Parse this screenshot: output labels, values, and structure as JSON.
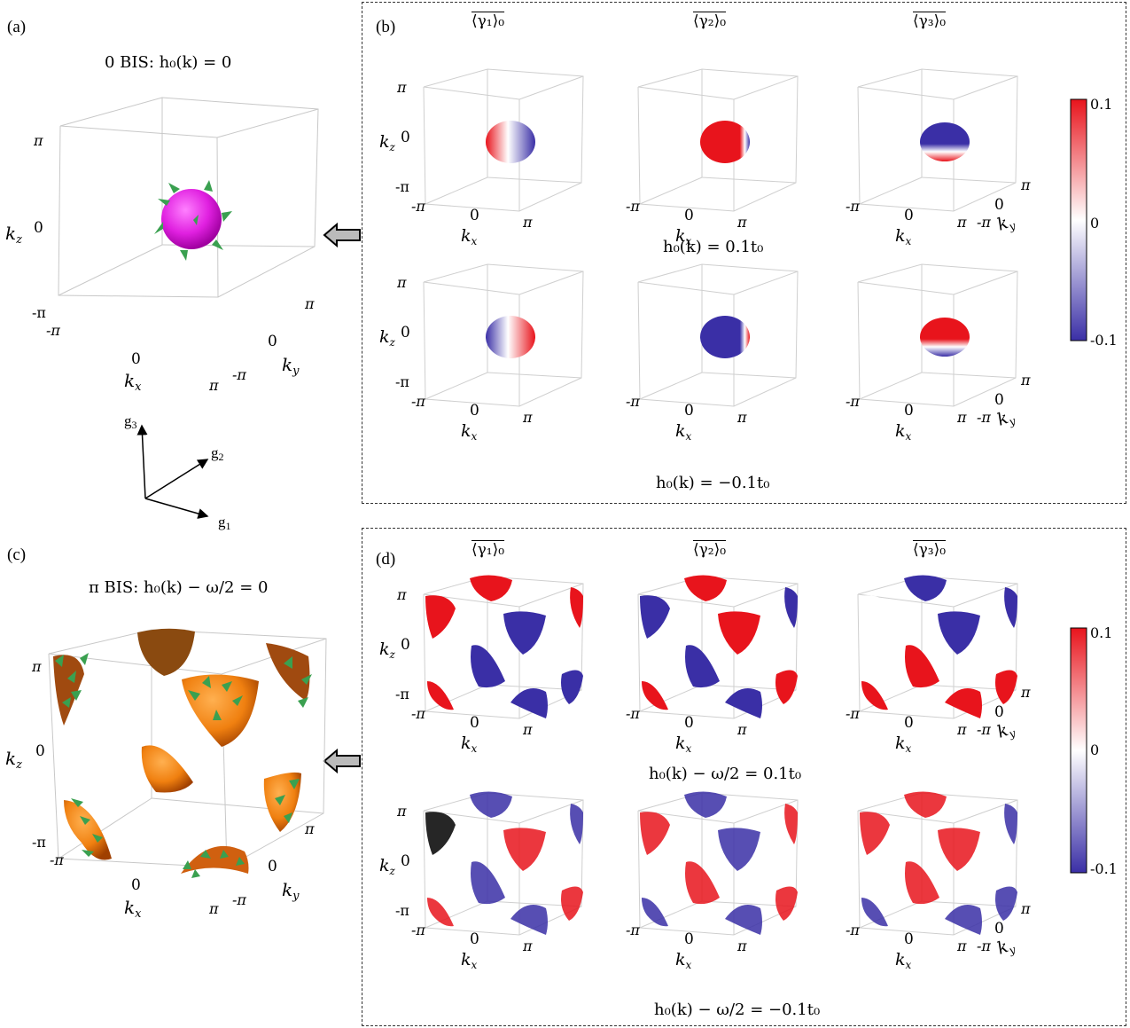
{
  "panels": {
    "a": {
      "label": "(a)",
      "title_left": "0 BIS: ",
      "title_math": "h₀(k) = 0"
    },
    "b": {
      "label": "(b)",
      "row1_caption": "h₀(k) = 0.1t₀",
      "row2_caption": "h₀(k) = −0.1t₀"
    },
    "c": {
      "label": "(c)",
      "title_left": "π BIS: ",
      "title_math": "h₀(k) − ω/2 = 0"
    },
    "d": {
      "label": "(d)",
      "row1_caption": "h₀(k) − ω/2 = 0.1t₀",
      "row2_caption": "h₀(k) − ω/2 = −0.1t₀"
    }
  },
  "column_headers": [
    "⟨γ₁⟩₀",
    "⟨γ₂⟩₀",
    "⟨γ₃⟩₀"
  ],
  "axes": {
    "kx": "kₓ",
    "ky": "k_y",
    "kz": "k_z",
    "ticks": {
      "neg": "-π",
      "zero": "0",
      "pos": "π"
    }
  },
  "frame_vectors": {
    "g1": "g₁",
    "g2": "g₂",
    "g3": "g₃"
  },
  "colorbar": {
    "max": "0.1",
    "mid": "0",
    "min": "-0.1",
    "colors": {
      "top": "#e8141c",
      "mid": "#ffffff",
      "bottom": "#3a2fa6"
    }
  },
  "colors": {
    "magenta_sphere": "#e020e0",
    "orange_surface": "#f08010",
    "cone_green": "#3aa050",
    "red": "#e8141c",
    "blue": "#3a2fa6"
  }
}
